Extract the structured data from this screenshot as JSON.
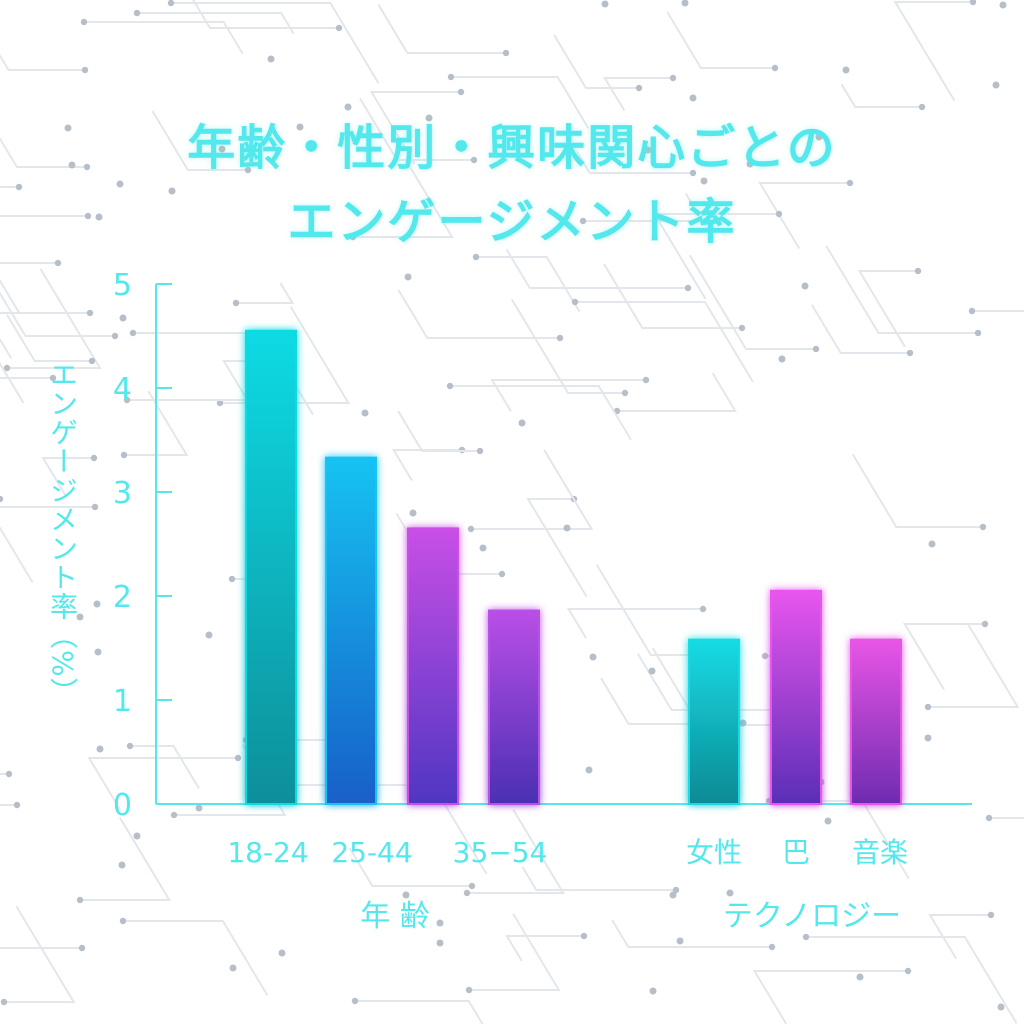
{
  "title": {
    "line1": "年齢・性別・興味関心ごとの",
    "line2": "エンゲージメント率"
  },
  "chart_data": {
    "type": "bar",
    "title": "年齢・性別・興味関心ごとのエンゲージメント率",
    "ylabel": "エンゲージメント率（%）",
    "ylim": [
      0,
      5
    ],
    "yticks": [
      0,
      1,
      2,
      3,
      4,
      5
    ],
    "groups": [
      {
        "label": "年 齢",
        "categories": [
          "18-24",
          "25-44",
          "35−54",
          ""
        ],
        "values": [
          4.55,
          3.33,
          2.65,
          1.86
        ]
      },
      {
        "label": "テクノロジー",
        "categories": [
          "女性",
          "巴",
          "音楽"
        ],
        "values": [
          1.58,
          2.05,
          1.58
        ]
      }
    ],
    "grid": false,
    "legend": "none"
  },
  "colors": {
    "axis": "#52e8ec",
    "text": "#52e8ec",
    "bars": [
      [
        "#10dbe4",
        "#0d8f9a"
      ],
      [
        "#12c3f2",
        "#1a5fc8"
      ],
      [
        "#c84fe6",
        "#4f36c2"
      ],
      [
        "#b94fe6",
        "#4a2fb3"
      ],
      [
        "#16dbe4",
        "#0d8a94"
      ],
      [
        "#e855ee",
        "#5a2eb6"
      ],
      [
        "#e855e6",
        "#6e2bb0"
      ]
    ]
  }
}
